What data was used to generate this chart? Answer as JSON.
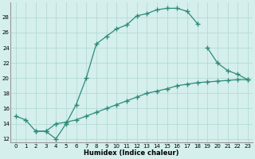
{
  "line1_x": [
    0,
    1,
    2,
    3,
    4,
    5,
    6,
    7,
    8,
    9,
    10,
    11,
    12,
    13,
    14,
    15,
    16,
    17,
    18
  ],
  "line1_y": [
    15,
    14.5,
    13,
    13,
    12,
    14,
    16.5,
    20,
    24.5,
    25.5,
    26.5,
    27,
    28.2,
    28.5,
    29,
    29.2,
    29.2,
    28.8,
    27.2
  ],
  "line2_x": [
    2,
    3,
    4,
    5,
    6,
    7,
    8,
    9,
    10,
    11,
    12,
    13,
    14,
    15,
    16,
    17,
    18,
    19,
    20,
    21,
    22,
    23
  ],
  "line2_y": [
    13,
    13,
    14,
    14.2,
    14.5,
    15,
    15.5,
    16,
    16.5,
    17,
    17.5,
    18,
    18.3,
    18.6,
    19,
    19.2,
    19.4,
    19.5,
    19.6,
    19.7,
    19.8,
    19.8
  ],
  "line3_x": [
    19,
    20,
    21,
    22,
    23
  ],
  "line3_y": [
    24,
    22,
    21,
    20.5,
    19.8
  ],
  "color": "#2e8b7a",
  "bg_color": "#d4efec",
  "grid_color": "#aed8d2",
  "xlabel": "Humidex (Indice chaleur)",
  "xlim": [
    -0.5,
    23.5
  ],
  "ylim": [
    11.5,
    30
  ],
  "yticks": [
    12,
    14,
    16,
    18,
    20,
    22,
    24,
    26,
    28
  ],
  "xticks": [
    0,
    1,
    2,
    3,
    4,
    5,
    6,
    7,
    8,
    9,
    10,
    11,
    12,
    13,
    14,
    15,
    16,
    17,
    18,
    19,
    20,
    21,
    22,
    23
  ],
  "marker": "+",
  "markersize": 4,
  "linewidth": 0.9,
  "tick_fontsize": 5.0,
  "xlabel_fontsize": 6.0
}
